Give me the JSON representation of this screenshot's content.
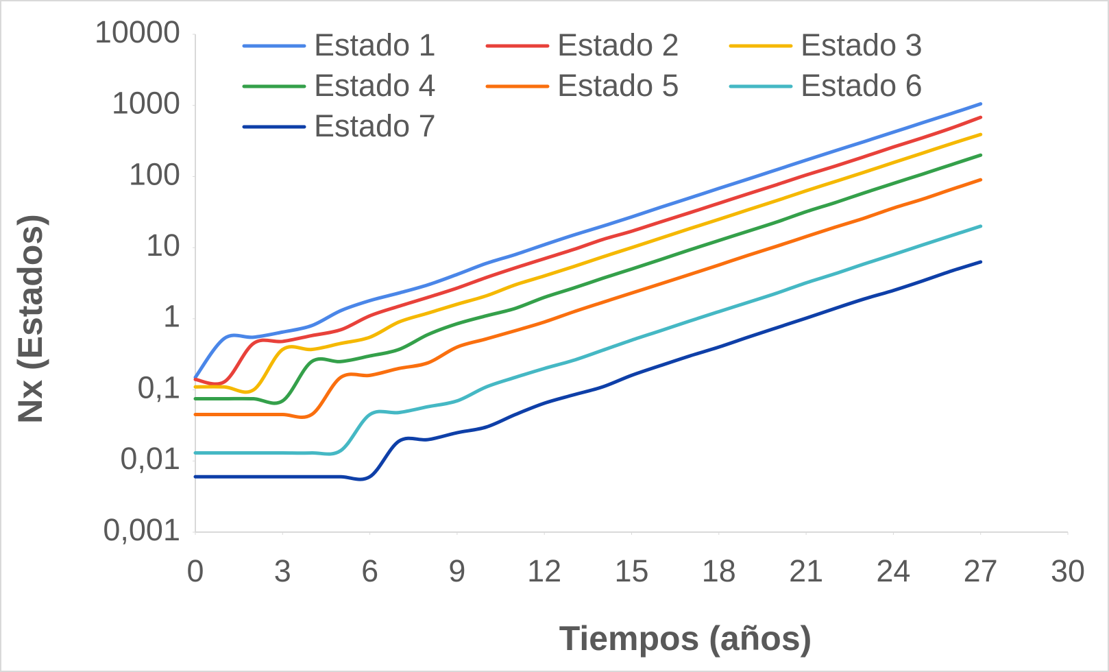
{
  "chart_data": {
    "type": "line",
    "x_label": "Tiempos (años)",
    "y_label": "Nx (Estados)",
    "x": [
      0,
      1,
      2,
      3,
      4,
      5,
      6,
      7,
      8,
      9,
      10,
      11,
      12,
      13,
      14,
      15,
      16,
      17,
      18,
      19,
      20,
      21,
      22,
      23,
      24,
      25,
      26,
      27
    ],
    "series": [
      {
        "name": "Estado 1",
        "color": "#4a86e8",
        "values": [
          0.15,
          0.53,
          0.55,
          0.65,
          0.8,
          1.3,
          1.8,
          2.3,
          3,
          4.2,
          6,
          8,
          11,
          15,
          20,
          27,
          37,
          50,
          68,
          92,
          125,
          170,
          230,
          310,
          420,
          570,
          770,
          1050
        ]
      },
      {
        "name": "Estado 2",
        "color": "#e8413a",
        "values": [
          0.14,
          0.13,
          0.45,
          0.48,
          0.58,
          0.7,
          1.1,
          1.5,
          2,
          2.7,
          3.8,
          5.2,
          7,
          9.4,
          13,
          17,
          23,
          31,
          42,
          57,
          77,
          105,
          140,
          190,
          260,
          350,
          480,
          680
        ]
      },
      {
        "name": "Estado 3",
        "color": "#f5b800",
        "values": [
          0.11,
          0.11,
          0.1,
          0.37,
          0.37,
          0.45,
          0.55,
          0.9,
          1.2,
          1.6,
          2.1,
          3,
          4,
          5.4,
          7.4,
          10,
          13.6,
          18.5,
          25,
          34,
          46,
          63,
          85,
          115,
          157,
          213,
          290,
          390
        ]
      },
      {
        "name": "Estado 4",
        "color": "#34a04a",
        "values": [
          0.075,
          0.075,
          0.075,
          0.07,
          0.25,
          0.25,
          0.3,
          0.37,
          0.6,
          0.85,
          1.1,
          1.4,
          2,
          2.7,
          3.7,
          5,
          6.8,
          9.3,
          12.6,
          17,
          23,
          32,
          43,
          59,
          80,
          108,
          147,
          200
        ]
      },
      {
        "name": "Estado 5",
        "color": "#fa6f0e",
        "values": [
          0.045,
          0.045,
          0.045,
          0.045,
          0.045,
          0.15,
          0.16,
          0.2,
          0.24,
          0.4,
          0.52,
          0.68,
          0.9,
          1.25,
          1.7,
          2.3,
          3.1,
          4.2,
          5.7,
          7.8,
          10.5,
          14.3,
          19.4,
          26,
          36,
          48,
          66,
          90
        ]
      },
      {
        "name": "Estado 6",
        "color": "#45b8c4",
        "values": [
          0.013,
          0.013,
          0.013,
          0.013,
          0.013,
          0.014,
          0.045,
          0.048,
          0.058,
          0.07,
          0.11,
          0.15,
          0.2,
          0.26,
          0.36,
          0.5,
          0.68,
          0.93,
          1.26,
          1.7,
          2.3,
          3.2,
          4.3,
          5.9,
          8,
          10.9,
          14.8,
          20
        ]
      },
      {
        "name": "Estado 7",
        "color": "#0e3fa8",
        "values": [
          0.006,
          0.006,
          0.006,
          0.006,
          0.006,
          0.006,
          0.006,
          0.019,
          0.02,
          0.025,
          0.03,
          0.045,
          0.065,
          0.085,
          0.11,
          0.16,
          0.22,
          0.3,
          0.4,
          0.55,
          0.75,
          1.02,
          1.4,
          1.9,
          2.5,
          3.4,
          4.7,
          6.3
        ]
      }
    ],
    "xlim": [
      0,
      30
    ],
    "xticks": [
      0,
      3,
      6,
      9,
      12,
      15,
      18,
      21,
      24,
      27,
      30
    ],
    "ylim": [
      0.001,
      10000
    ],
    "log_y": true,
    "yticks": [
      {
        "value": 0.001,
        "label": "0,001"
      },
      {
        "value": 0.01,
        "label": "0,01"
      },
      {
        "value": 0.1,
        "label": "0,1"
      },
      1,
      10,
      100,
      1000,
      10000
    ],
    "grid": false,
    "legend": "top-left"
  }
}
